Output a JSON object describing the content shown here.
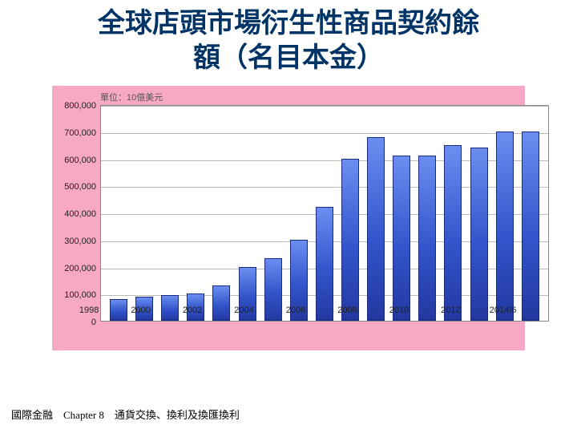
{
  "title_line1": "全球店頭市場衍生性商品契約餘",
  "title_line2": "額（名目本金）",
  "footer": "國際金融　Chapter 8　通貨交換、換利及換匯換利",
  "chart": {
    "type": "bar",
    "unit_label": "單位：10億美元",
    "background_color": "#f7a8c4",
    "plot_bg": "#ffffff",
    "grid_color": "#bbbbbb",
    "bar_fill": "#3355cc",
    "bar_border": "#1a2a80",
    "ylim": [
      0,
      800000
    ],
    "ytick_step": 100000,
    "yticks": [
      "0",
      "100,000",
      "200,000",
      "300,000",
      "400,000",
      "500,000",
      "600,000",
      "700,000",
      "800,000"
    ],
    "categories": [
      "1998",
      "",
      "2000",
      "",
      "2002",
      "",
      "2004",
      "",
      "2006",
      "",
      "2008",
      "",
      "2010",
      "",
      "2012",
      "",
      "2014/6"
    ],
    "values": [
      80000,
      88000,
      95000,
      100000,
      130000,
      200000,
      230000,
      300000,
      420000,
      600000,
      680000,
      610000,
      610000,
      650000,
      640000,
      700000,
      700000
    ],
    "bar_width": 0.55,
    "title_fontsize": 34,
    "title_color": "#003366",
    "label_fontsize": 11
  }
}
